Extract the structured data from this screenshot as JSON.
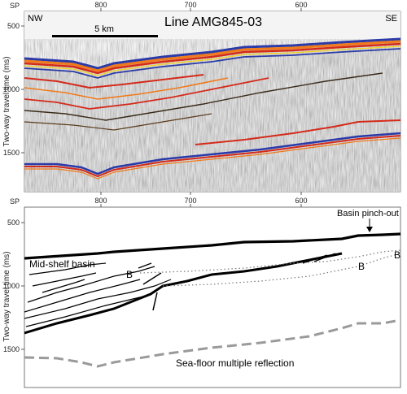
{
  "title": "Line AMG845-03",
  "orientation": {
    "left": "NW",
    "right": "SE"
  },
  "scale_bar": "5 km",
  "axes": {
    "x_label": "SP",
    "y_label": "Two-way travel time (ms)",
    "x_ticks": [
      "800",
      "700",
      "600"
    ],
    "y_ticks": [
      "500",
      "1000",
      "1500"
    ]
  },
  "interpretation": {
    "basin_label": "Mid-shelf basin",
    "pinch_out_label": "Basin pinch-out",
    "horizon_label": "B",
    "multiple_label": "Sea-floor multiple reflection"
  },
  "colors": {
    "seafloor_blue": "#2a3aa8",
    "amplitude_orange": "#f07a1a",
    "amplitude_red": "#d42a1a",
    "amplitude_yellow": "#f5d21a",
    "multiple_gray": "#9a9a9a"
  }
}
